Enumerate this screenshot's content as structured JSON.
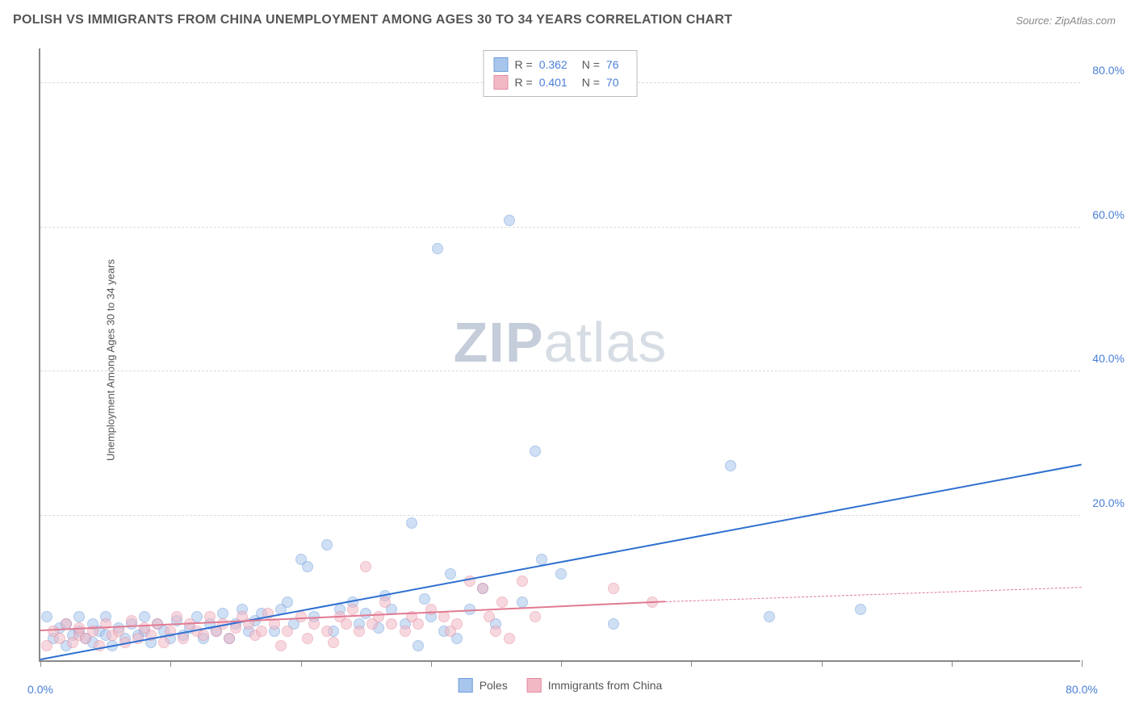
{
  "header": {
    "title": "POLISH VS IMMIGRANTS FROM CHINA UNEMPLOYMENT AMONG AGES 30 TO 34 YEARS CORRELATION CHART",
    "source_prefix": "Source: ",
    "source": "ZipAtlas.com"
  },
  "watermark": {
    "part1": "ZIP",
    "part2": "atlas"
  },
  "chart": {
    "type": "scatter",
    "y_axis_label": "Unemployment Among Ages 30 to 34 years",
    "xlim": [
      0,
      80
    ],
    "ylim": [
      0,
      85
    ],
    "x_ticks": [
      0,
      10,
      20,
      30,
      40,
      50,
      60,
      70,
      80
    ],
    "x_tick_labels": [
      "0.0%",
      "",
      "",
      "",
      "",
      "",
      "",
      "",
      "80.0%"
    ],
    "y_ticks": [
      20,
      40,
      60,
      80
    ],
    "y_tick_labels": [
      "20.0%",
      "40.0%",
      "60.0%",
      "80.0%"
    ],
    "background_color": "#ffffff",
    "grid_color": "#dddddd",
    "axis_color": "#888888",
    "marker_radius": 7,
    "marker_opacity": 0.55,
    "series": [
      {
        "name": "Poles",
        "color_fill": "#a8c5ec",
        "color_stroke": "#6f9edb",
        "trend_color": "#2f6fd0",
        "trend_width": 2,
        "trend_dash": false,
        "r_value": "0.362",
        "n_value": "76",
        "trend": {
          "x1": 0,
          "y1": 0,
          "x2": 80,
          "y2": 27
        },
        "points": [
          [
            0.5,
            6
          ],
          [
            1,
            3
          ],
          [
            1.5,
            4.5
          ],
          [
            2,
            2
          ],
          [
            2,
            5
          ],
          [
            2.5,
            3.5
          ],
          [
            3,
            4
          ],
          [
            3,
            6
          ],
          [
            3.5,
            3
          ],
          [
            4,
            2.5
          ],
          [
            4,
            5
          ],
          [
            4.5,
            4
          ],
          [
            5,
            3.5
          ],
          [
            5,
            6
          ],
          [
            5.5,
            2
          ],
          [
            6,
            4.5
          ],
          [
            6.5,
            3
          ],
          [
            7,
            5
          ],
          [
            7.5,
            3.5
          ],
          [
            8,
            4
          ],
          [
            8,
            6
          ],
          [
            8.5,
            2.5
          ],
          [
            9,
            5
          ],
          [
            9.5,
            4
          ],
          [
            10,
            3
          ],
          [
            10.5,
            5.5
          ],
          [
            11,
            3.5
          ],
          [
            11.5,
            4.5
          ],
          [
            12,
            6
          ],
          [
            12.5,
            3
          ],
          [
            13,
            5
          ],
          [
            13.5,
            4
          ],
          [
            14,
            6.5
          ],
          [
            14.5,
            3
          ],
          [
            15,
            5
          ],
          [
            15.5,
            7
          ],
          [
            16,
            4
          ],
          [
            16.5,
            5.5
          ],
          [
            17,
            6.5
          ],
          [
            18,
            4
          ],
          [
            18.5,
            7
          ],
          [
            19,
            8
          ],
          [
            19.5,
            5
          ],
          [
            20,
            14
          ],
          [
            20.5,
            13
          ],
          [
            21,
            6
          ],
          [
            22,
            16
          ],
          [
            22.5,
            4
          ],
          [
            23,
            7
          ],
          [
            24,
            8
          ],
          [
            24.5,
            5
          ],
          [
            25,
            6.5
          ],
          [
            26,
            4.5
          ],
          [
            26.5,
            9
          ],
          [
            27,
            7
          ],
          [
            28,
            5
          ],
          [
            28.5,
            19
          ],
          [
            29,
            2
          ],
          [
            29.5,
            8.5
          ],
          [
            30,
            6
          ],
          [
            30.5,
            57
          ],
          [
            31,
            4
          ],
          [
            31.5,
            12
          ],
          [
            32,
            3
          ],
          [
            33,
            7
          ],
          [
            34,
            10
          ],
          [
            35,
            5
          ],
          [
            36,
            61
          ],
          [
            37,
            8
          ],
          [
            38,
            29
          ],
          [
            38.5,
            14
          ],
          [
            40,
            12
          ],
          [
            44,
            5
          ],
          [
            53,
            27
          ],
          [
            56,
            6
          ],
          [
            63,
            7
          ]
        ]
      },
      {
        "name": "Immigrants from China",
        "color_fill": "#f2b9c5",
        "color_stroke": "#e48ba0",
        "trend_color": "#e17a92",
        "trend_width": 2,
        "trend_dash": false,
        "r_value": "0.401",
        "n_value": "70",
        "trend": {
          "x1": 0,
          "y1": 4,
          "x2": 48,
          "y2": 8
        },
        "trend_ext": {
          "x1": 48,
          "y1": 8,
          "x2": 80,
          "y2": 10
        },
        "points": [
          [
            0.5,
            2
          ],
          [
            1,
            4
          ],
          [
            1.5,
            3
          ],
          [
            2,
            5
          ],
          [
            2.5,
            2.5
          ],
          [
            3,
            3.5
          ],
          [
            3,
            4.5
          ],
          [
            3.5,
            3
          ],
          [
            4,
            4
          ],
          [
            4.5,
            2
          ],
          [
            5,
            5
          ],
          [
            5.5,
            3.5
          ],
          [
            6,
            4
          ],
          [
            6.5,
            2.5
          ],
          [
            7,
            5.5
          ],
          [
            7.5,
            3
          ],
          [
            8,
            4.5
          ],
          [
            8.5,
            3.5
          ],
          [
            9,
            5
          ],
          [
            9.5,
            2.5
          ],
          [
            10,
            4
          ],
          [
            10.5,
            6
          ],
          [
            11,
            3
          ],
          [
            11.5,
            5
          ],
          [
            12,
            4
          ],
          [
            12.5,
            3.5
          ],
          [
            13,
            6
          ],
          [
            13.5,
            4
          ],
          [
            14,
            5
          ],
          [
            14.5,
            3
          ],
          [
            15,
            4.5
          ],
          [
            15.5,
            6
          ],
          [
            16,
            5
          ],
          [
            16.5,
            3.5
          ],
          [
            17,
            4
          ],
          [
            17.5,
            6.5
          ],
          [
            18,
            5
          ],
          [
            18.5,
            2
          ],
          [
            19,
            4
          ],
          [
            20,
            6
          ],
          [
            20.5,
            3
          ],
          [
            21,
            5
          ],
          [
            22,
            4
          ],
          [
            22.5,
            2.5
          ],
          [
            23,
            6
          ],
          [
            23.5,
            5
          ],
          [
            24,
            7
          ],
          [
            24.5,
            4
          ],
          [
            25,
            13
          ],
          [
            25.5,
            5
          ],
          [
            26,
            6
          ],
          [
            26.5,
            8
          ],
          [
            27,
            5
          ],
          [
            28,
            4
          ],
          [
            28.5,
            6
          ],
          [
            29,
            5
          ],
          [
            30,
            7
          ],
          [
            31,
            6
          ],
          [
            31.5,
            4
          ],
          [
            32,
            5
          ],
          [
            33,
            11
          ],
          [
            34,
            10
          ],
          [
            34.5,
            6
          ],
          [
            35,
            4
          ],
          [
            35.5,
            8
          ],
          [
            36,
            3
          ],
          [
            37,
            11
          ],
          [
            38,
            6
          ],
          [
            44,
            10
          ],
          [
            47,
            8
          ]
        ]
      }
    ],
    "legend_stats": {
      "r_label": "R =",
      "n_label": "N ="
    },
    "legend_bottom": {
      "series1_label": "Poles",
      "series2_label": "Immigrants from China"
    }
  }
}
